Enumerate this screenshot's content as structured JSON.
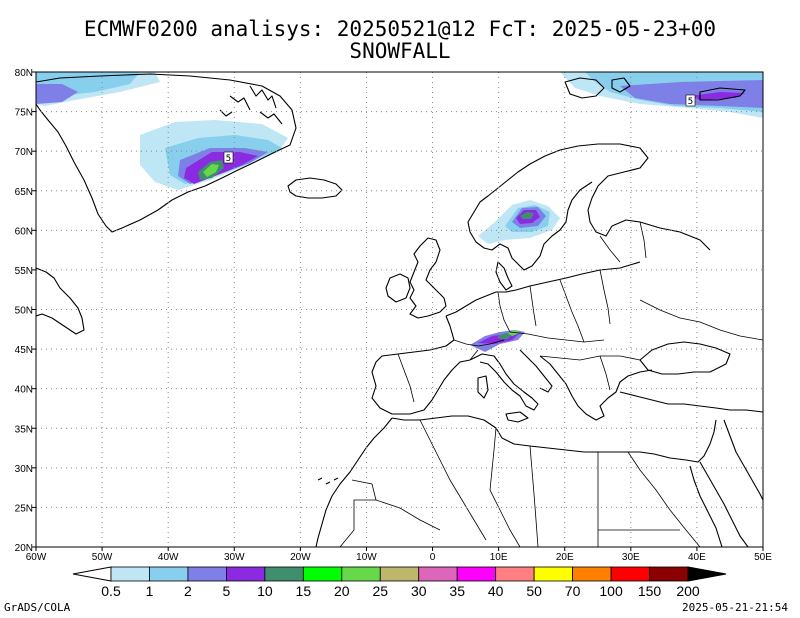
{
  "header": {
    "line1": "ECMWF0200 analisys: 20250521@12 FcT: 2025-05-23+00",
    "line2": "SNOWFALL"
  },
  "axes": {
    "lat_labels": [
      "80N",
      "75N",
      "70N",
      "65N",
      "60N",
      "55N",
      "50N",
      "45N",
      "40N",
      "35N",
      "30N",
      "25N",
      "20N"
    ],
    "lon_labels": [
      "60W",
      "50W",
      "40W",
      "30W",
      "20W",
      "10W",
      "0",
      "10E",
      "20E",
      "30E",
      "40E",
      "50E"
    ]
  },
  "colorbar": {
    "levels": [
      "0.5",
      "1",
      "2",
      "5",
      "10",
      "15",
      "20",
      "25",
      "30",
      "35",
      "40",
      "50",
      "70",
      "100",
      "150",
      "200"
    ],
    "colors": [
      "#bfe6f5",
      "#88cfee",
      "#7f7fe8",
      "#8a2be2",
      "#3f8f6f",
      "#00ff00",
      "#66d94a",
      "#bdb76b",
      "#dd66bb",
      "#ff00ff",
      "#ff8080",
      "#ffff00",
      "#ff8000",
      "#ff0000",
      "#8b0000"
    ],
    "low_end_color": "#ffffff",
    "high_end_color": "#000000"
  },
  "contour_labels": {
    "greenland": "5",
    "arctic": "5"
  },
  "footer": {
    "left": "GrADS/COLA",
    "right": "2025-05-21-21:54"
  }
}
